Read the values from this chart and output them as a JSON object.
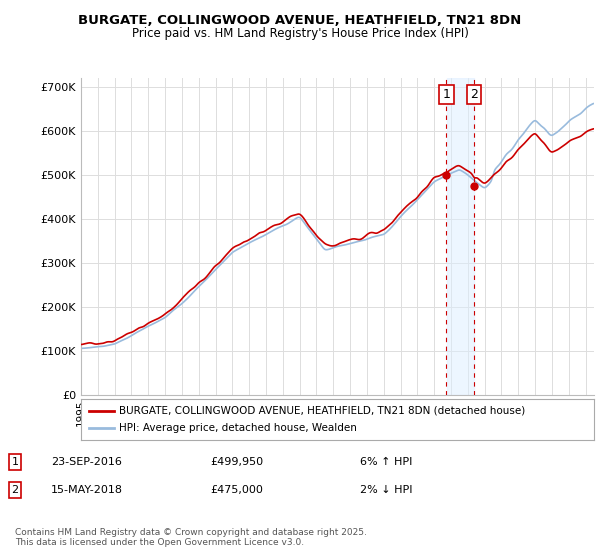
{
  "title": "BURGATE, COLLINGWOOD AVENUE, HEATHFIELD, TN21 8DN",
  "subtitle": "Price paid vs. HM Land Registry's House Price Index (HPI)",
  "legend_label1": "BURGATE, COLLINGWOOD AVENUE, HEATHFIELD, TN21 8DN (detached house)",
  "legend_label2": "HPI: Average price, detached house, Wealden",
  "annotation1_date": "23-SEP-2016",
  "annotation1_price": "£499,950",
  "annotation1_hpi": "6% ↑ HPI",
  "annotation2_date": "15-MAY-2018",
  "annotation2_price": "£475,000",
  "annotation2_hpi": "2% ↓ HPI",
  "footer": "Contains HM Land Registry data © Crown copyright and database right 2025.\nThis data is licensed under the Open Government Licence v3.0.",
  "ylim": [
    0,
    720000
  ],
  "yticks": [
    0,
    100000,
    200000,
    300000,
    400000,
    500000,
    600000,
    700000
  ],
  "ytick_labels": [
    "£0",
    "£100K",
    "£200K",
    "£300K",
    "£400K",
    "£500K",
    "£600K",
    "£700K"
  ],
  "line1_color": "#cc0000",
  "line2_color": "#99bbdd",
  "shade_color": "#ddeeff",
  "annotation_color": "#cc0000",
  "grid_color": "#dddddd",
  "background_color": "#ffffff",
  "sale1_x": 2016.73,
  "sale1_y": 499950,
  "sale2_x": 2018.37,
  "sale2_y": 475000,
  "xmin": 1995,
  "xmax": 2025.5
}
